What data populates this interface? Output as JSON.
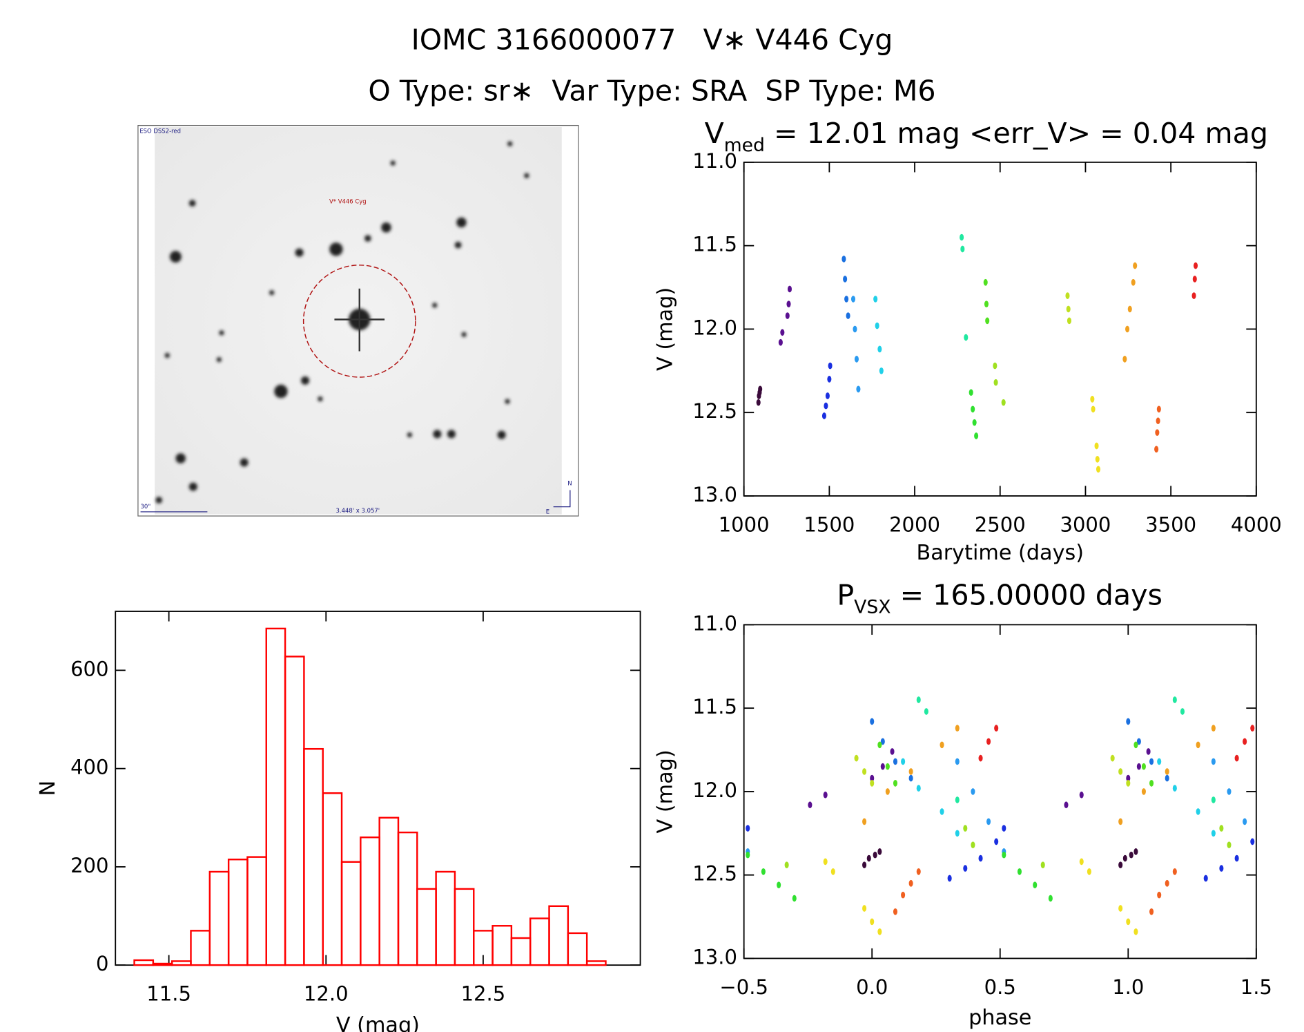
{
  "header": {
    "title": "IOMC 3166000077   V∗ V446 Cyg",
    "subtitle": "O Type: sr∗  Var Type: SRA  SP Type: M6"
  },
  "image": {
    "survey": "ESO DSS2-red",
    "target": "V* V446 Cyg",
    "scale": "30\"",
    "field": "3.448' x 3.057'",
    "north": "N",
    "east": "E"
  },
  "chart_data": [
    {
      "type": "scatter",
      "title": {
        "text": "V",
        "subscript": "med",
        "rest": " = 12.01 mag <err_V> = 0.04 mag"
      },
      "xlabel": "Barytime (days)",
      "ylabel": "V (mag)",
      "xlim": [
        1000,
        4000
      ],
      "ylim": [
        13.0,
        11.0
      ],
      "xticks": [
        1000,
        1500,
        2000,
        2500,
        3000,
        3500,
        4000
      ],
      "yticks": [
        {
          "value": 11.0,
          "label": "11.0"
        },
        11.5,
        {
          "value": 12.0,
          "label": "12.0"
        },
        12.5,
        {
          "value": 13.0,
          "label": "13.0"
        }
      ],
      "series": [
        {
          "color": "#3a0a3a",
          "x": [
            1085,
            1088,
            1092,
            1095
          ],
          "values": [
            12.44,
            12.4,
            12.38,
            12.36
          ]
        },
        {
          "color": "#5a1090",
          "x": [
            1215,
            1225,
            1255,
            1262,
            1268
          ],
          "values": [
            12.08,
            12.02,
            11.92,
            11.85,
            11.76
          ]
        },
        {
          "color": "#1a2fe0",
          "x": [
            1470,
            1480,
            1490,
            1500,
            1505
          ],
          "values": [
            12.52,
            12.46,
            12.4,
            12.3,
            12.22
          ]
        },
        {
          "color": "#1a70e0",
          "x": [
            1585,
            1592,
            1600,
            1610
          ],
          "values": [
            11.58,
            11.7,
            11.82,
            11.92
          ]
        },
        {
          "color": "#2a9af0",
          "x": [
            1640,
            1650,
            1660,
            1670
          ],
          "values": [
            11.82,
            12.0,
            12.18,
            12.36
          ]
        },
        {
          "color": "#20d0e8",
          "x": [
            1770,
            1780,
            1795,
            1805
          ],
          "values": [
            11.82,
            11.98,
            12.12,
            12.25
          ]
        },
        {
          "color": "#20e8a0",
          "x": [
            2275,
            2280,
            2300
          ],
          "values": [
            11.45,
            11.52,
            12.05
          ]
        },
        {
          "color": "#30e030",
          "x": [
            2330,
            2340,
            2350,
            2360
          ],
          "values": [
            12.38,
            12.48,
            12.56,
            12.64
          ]
        },
        {
          "color": "#50e020",
          "x": [
            2415,
            2420,
            2425
          ],
          "values": [
            11.72,
            11.85,
            11.95
          ]
        },
        {
          "color": "#a0e020",
          "x": [
            2470,
            2475,
            2520
          ],
          "values": [
            12.22,
            12.32,
            12.44
          ]
        },
        {
          "color": "#c0e020",
          "x": [
            2895,
            2900,
            2905
          ],
          "values": [
            11.8,
            11.88,
            11.95
          ]
        },
        {
          "color": "#f0e020",
          "x": [
            3040,
            3045,
            3065,
            3070,
            3075
          ],
          "values": [
            12.42,
            12.48,
            12.7,
            12.78,
            12.84
          ]
        },
        {
          "color": "#f0a020",
          "x": [
            3230,
            3245,
            3260,
            3280,
            3290
          ],
          "values": [
            12.18,
            12.0,
            11.88,
            11.72,
            11.62
          ]
        },
        {
          "color": "#f06020",
          "x": [
            3415,
            3420,
            3425,
            3430
          ],
          "values": [
            12.72,
            12.62,
            12.55,
            12.48
          ]
        },
        {
          "color": "#e82020",
          "x": [
            3635,
            3640,
            3645
          ],
          "values": [
            11.8,
            11.7,
            11.62
          ]
        }
      ]
    },
    {
      "type": "scatter",
      "title": {
        "text": "P",
        "subscript": "VSX",
        "rest": " = 165.00000 days"
      },
      "xlabel": "phase",
      "ylabel": "V (mag)",
      "xlim": [
        -0.5,
        1.5
      ],
      "ylim": [
        13.0,
        11.0
      ],
      "xticks": [
        {
          "value": -0.5,
          "label": "−0.5"
        },
        {
          "value": 0,
          "label": "0.0"
        },
        0.5,
        {
          "value": 1,
          "label": "1.0"
        },
        1.5
      ],
      "yticks": [
        {
          "value": 11.0,
          "label": "11.0"
        },
        11.5,
        {
          "value": 12.0,
          "label": "12.0"
        },
        12.5,
        {
          "value": 13.0,
          "label": "13.0"
        }
      ],
      "series": [
        {
          "color": "#3a0a3a",
          "x": [
            -0.03,
            0.97,
            -0.012,
            0.988,
            0.012,
            1.012,
            0.03,
            1.03
          ],
          "values": [
            12.44,
            12.44,
            12.4,
            12.4,
            12.38,
            12.38,
            12.36,
            12.36
          ]
        },
        {
          "color": "#5a1090",
          "x": [
            -0.242,
            0.758,
            -0.182,
            0.818,
            0.0,
            1.0,
            0.042,
            1.042,
            0.079,
            1.079
          ],
          "values": [
            12.08,
            12.08,
            12.02,
            12.02,
            11.92,
            11.92,
            11.85,
            11.85,
            11.76,
            11.76
          ]
        },
        {
          "color": "#1a2fe0",
          "x": [
            0.303,
            1.303,
            0.364,
            1.364,
            0.424,
            1.424,
            0.485,
            1.485,
            -0.485,
            0.515
          ],
          "values": [
            12.52,
            12.52,
            12.46,
            12.46,
            12.4,
            12.4,
            12.3,
            12.3,
            12.22,
            12.22
          ]
        },
        {
          "color": "#1a70e0",
          "x": [
            0.0,
            1.0,
            0.042,
            1.042,
            0.091,
            1.091,
            0.152,
            1.152
          ],
          "values": [
            11.58,
            11.58,
            11.7,
            11.7,
            11.82,
            11.82,
            11.92,
            11.92
          ]
        },
        {
          "color": "#2a9af0",
          "x": [
            0.333,
            1.333,
            0.394,
            1.394,
            0.455,
            1.455,
            -0.485,
            0.515
          ],
          "values": [
            11.82,
            11.82,
            12.0,
            12.0,
            12.18,
            12.18,
            12.36,
            12.36
          ]
        },
        {
          "color": "#20d0e8",
          "x": [
            0.121,
            1.121,
            0.182,
            1.182,
            0.273,
            1.273,
            0.333,
            1.333
          ],
          "values": [
            11.82,
            11.82,
            11.98,
            11.98,
            12.12,
            12.12,
            12.25,
            12.25
          ]
        },
        {
          "color": "#20e8a0",
          "x": [
            0.182,
            1.182,
            0.212,
            1.212,
            0.333,
            1.333
          ],
          "values": [
            11.45,
            11.45,
            11.52,
            11.52,
            12.05,
            12.05
          ]
        },
        {
          "color": "#30e030",
          "x": [
            -0.485,
            0.515,
            -0.424,
            0.576,
            -0.364,
            0.636,
            -0.303,
            0.697
          ],
          "values": [
            12.38,
            12.38,
            12.48,
            12.48,
            12.56,
            12.56,
            12.64,
            12.64
          ]
        },
        {
          "color": "#50e020",
          "x": [
            0.03,
            1.03,
            0.061,
            1.061,
            0.091,
            1.091
          ],
          "values": [
            11.72,
            11.72,
            11.85,
            11.85,
            11.95,
            11.95
          ]
        },
        {
          "color": "#a0e020",
          "x": [
            0.364,
            1.364,
            0.394,
            1.394,
            -0.333,
            0.667
          ],
          "values": [
            12.22,
            12.22,
            12.32,
            12.32,
            12.44,
            12.44
          ]
        },
        {
          "color": "#c0e020",
          "x": [
            -0.061,
            0.939,
            -0.03,
            0.97,
            0.0,
            1.0
          ],
          "values": [
            11.8,
            11.8,
            11.88,
            11.88,
            11.95,
            11.95
          ]
        },
        {
          "color": "#f0e020",
          "x": [
            -0.182,
            0.818,
            -0.152,
            0.848,
            -0.03,
            0.97,
            0.0,
            1.0,
            0.03,
            1.03
          ],
          "values": [
            12.42,
            12.42,
            12.48,
            12.48,
            12.7,
            12.7,
            12.78,
            12.78,
            12.84,
            12.84
          ]
        },
        {
          "color": "#f0a020",
          "x": [
            -0.03,
            0.97,
            0.061,
            1.061,
            0.152,
            1.152,
            0.273,
            1.273,
            0.333,
            1.333
          ],
          "values": [
            12.18,
            12.18,
            12.0,
            12.0,
            11.88,
            11.88,
            11.72,
            11.72,
            11.62,
            11.62
          ]
        },
        {
          "color": "#f06020",
          "x": [
            0.091,
            1.091,
            0.121,
            1.121,
            0.152,
            1.152,
            0.182,
            1.182
          ],
          "values": [
            12.72,
            12.72,
            12.62,
            12.62,
            12.55,
            12.55,
            12.48,
            12.48
          ]
        },
        {
          "color": "#e82020",
          "x": [
            0.424,
            1.424,
            0.455,
            1.455,
            0.485,
            1.485
          ],
          "values": [
            11.8,
            11.8,
            11.7,
            11.7,
            11.62,
            11.62
          ]
        }
      ]
    },
    {
      "type": "histogram",
      "xlabel": "V (mag)",
      "ylabel": "N",
      "color": "#ff0000",
      "xlim": [
        11.33,
        13.0
      ],
      "ylim": [
        0,
        720
      ],
      "xticks": [
        11.5,
        {
          "value": 12.0,
          "label": "12.0"
        },
        12.5
      ],
      "yticks": [
        0,
        200,
        400,
        600
      ],
      "bins": [
        11.39,
        11.45,
        11.51,
        11.57,
        11.63,
        11.69,
        11.75,
        11.81,
        11.87,
        11.93,
        11.99,
        12.05,
        12.11,
        12.17,
        12.23,
        12.29,
        12.35,
        12.41,
        12.47,
        12.53,
        12.59,
        12.65,
        12.71,
        12.77,
        12.83,
        12.89
      ],
      "values": [
        10,
        3,
        8,
        70,
        190,
        215,
        220,
        685,
        628,
        440,
        350,
        210,
        260,
        300,
        270,
        155,
        190,
        155,
        70,
        80,
        55,
        95,
        120,
        65,
        8
      ]
    }
  ]
}
